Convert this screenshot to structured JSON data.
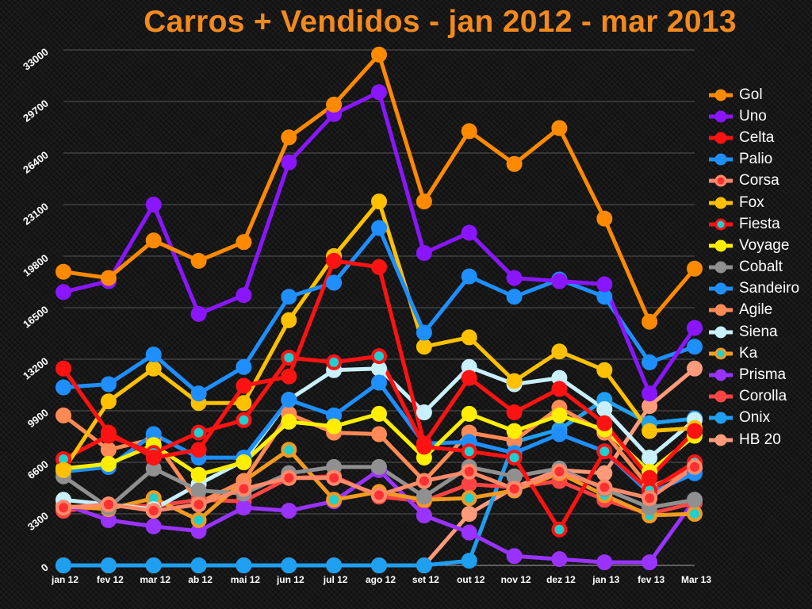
{
  "title": "Carros + Vendidos - jan 2012 - mar 2013",
  "chart_data": {
    "type": "line",
    "title": "Carros + Vendidos - jan 2012 - mar 2013",
    "xlabel": "",
    "ylabel": "",
    "categories": [
      "jan 12",
      "fev 12",
      "mar 12",
      "ab 12",
      "mai 12",
      "jun 12",
      "jul 12",
      "ago 12",
      "set 12",
      "out 12",
      "nov 12",
      "dez 12",
      "jan 13",
      "fev 13",
      "Mar 13"
    ],
    "ylim": [
      0,
      33000
    ],
    "yticks": [
      0,
      3300,
      6600,
      9900,
      13200,
      16500,
      19800,
      23100,
      26400,
      29700,
      33000
    ],
    "grid": true,
    "legend_position": "right",
    "series": [
      {
        "name": "Gol",
        "color": "#ff8a00",
        "marker": "#ff8a00",
        "values": [
          18800,
          18400,
          20800,
          19500,
          20700,
          27400,
          29500,
          32700,
          23300,
          27800,
          25700,
          28000,
          22200,
          15600,
          19000
        ]
      },
      {
        "name": "Uno",
        "color": "#8a16ff",
        "marker": "#8a16ff",
        "values": [
          17500,
          18200,
          23100,
          16100,
          17300,
          25800,
          28900,
          30300,
          20000,
          21300,
          18400,
          18200,
          18000,
          11000,
          15200
        ]
      },
      {
        "name": "Celta",
        "color": "#ff1212",
        "marker": "#ff1212",
        "values": [
          12600,
          8500,
          6900,
          7400,
          11500,
          12100,
          19500,
          19100,
          7800,
          12000,
          9800,
          11300,
          9100,
          5600,
          8600
        ]
      },
      {
        "name": "Palio",
        "color": "#1f8fff",
        "marker": "#1f8fff",
        "values": [
          11400,
          11600,
          13500,
          11000,
          12700,
          17200,
          18100,
          21600,
          14900,
          18500,
          17200,
          18300,
          17200,
          13000,
          14000
        ]
      },
      {
        "name": "Corsa",
        "color": "#ff8a6a",
        "marker": "#ff3030",
        "values": [
          3700,
          3900,
          3500,
          3900,
          4900,
          5600,
          5600,
          4500,
          5400,
          6000,
          4900,
          6000,
          5000,
          4300,
          6300
        ]
      },
      {
        "name": "Fox",
        "color": "#ffc000",
        "marker": "#ffc000",
        "values": [
          6100,
          10500,
          12600,
          10400,
          10400,
          15700,
          19800,
          23300,
          14000,
          14600,
          11800,
          13700,
          12500,
          8600,
          8800
        ]
      },
      {
        "name": "Fiesta",
        "color": "#ff1212",
        "marker": "#20d0d0",
        "values": [
          6800,
          8300,
          7200,
          8500,
          9300,
          13300,
          13000,
          13400,
          7600,
          7300,
          6900,
          2300,
          7300,
          4800,
          6600
        ]
      },
      {
        "name": "Voyage",
        "color": "#ffee00",
        "marker": "#ffee00",
        "values": [
          6200,
          6500,
          7700,
          5800,
          6600,
          9200,
          8900,
          9700,
          6900,
          9700,
          8600,
          9600,
          8700,
          6000,
          8300
        ]
      },
      {
        "name": "Cobalt",
        "color": "#909090",
        "marker": "#909090",
        "values": [
          5700,
          3700,
          6200,
          4800,
          4600,
          5900,
          6300,
          6300,
          4400,
          6300,
          5700,
          6200,
          4900,
          3700,
          4200
        ]
      },
      {
        "name": "Sandeiro",
        "color": "#1f8fff",
        "marker": "#1f8fff",
        "values": [
          6000,
          6300,
          8400,
          6900,
          6900,
          10600,
          9600,
          11700,
          7800,
          7900,
          7200,
          8400,
          7300,
          4600,
          5900
        ]
      },
      {
        "name": "Agile",
        "color": "#ff8a55",
        "marker": "#ff8a55",
        "values": [
          9600,
          7400,
          8100,
          4000,
          5400,
          9700,
          8500,
          8400,
          5400,
          8500,
          8000,
          10100,
          8500,
          5000,
          6200
        ]
      },
      {
        "name": "Siena",
        "color": "#c8f0ff",
        "marker": "#c8f0ff",
        "values": [
          4200,
          3900,
          3600,
          5200,
          6700,
          10600,
          12500,
          12600,
          9800,
          12700,
          11600,
          12000,
          10000,
          6900,
          9300
        ]
      },
      {
        "name": "Ka",
        "color": "#f39a20",
        "marker": "#20d0d0",
        "values": [
          3800,
          3600,
          4300,
          2900,
          5400,
          7400,
          4200,
          4700,
          4200,
          4300,
          4800,
          5900,
          4500,
          3200,
          3300
        ]
      },
      {
        "name": "Prisma",
        "color": "#9a33ff",
        "marker": "#9a33ff",
        "values": [
          3900,
          2900,
          2500,
          2200,
          3700,
          3500,
          4100,
          6100,
          3200,
          2100,
          600,
          400,
          200,
          200,
          4200
        ]
      },
      {
        "name": "Corolla",
        "color": "#ff4444",
        "marker": "#ff4444",
        "values": [
          3500,
          3800,
          3800,
          4200,
          4100,
          5600,
          5700,
          4400,
          4100,
          5200,
          5000,
          5400,
          4200,
          3300,
          4000
        ]
      },
      {
        "name": "Onix",
        "color": "#1f9ff0",
        "marker": "#1f9ff0",
        "values": [
          0,
          0,
          0,
          0,
          0,
          0,
          0,
          0,
          0,
          300,
          7900,
          8700,
          10600,
          9100,
          9400
        ]
      },
      {
        "name": "HB 20",
        "color": "#ff9a7a",
        "marker": "#ff9a7a",
        "values": [
          0,
          0,
          0,
          0,
          0,
          0,
          0,
          0,
          0,
          3300,
          5000,
          6100,
          5900,
          10200,
          12600
        ]
      }
    ]
  }
}
